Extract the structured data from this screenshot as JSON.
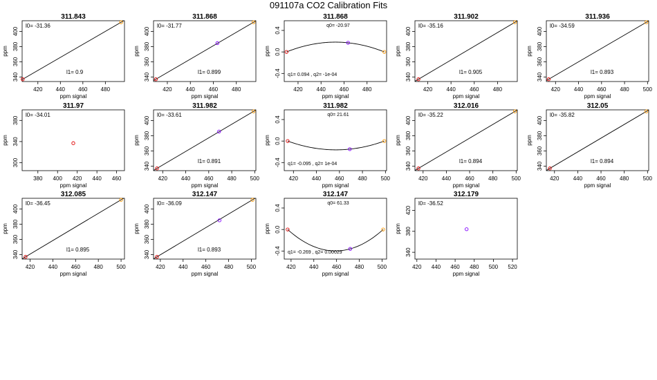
{
  "title": "091107a   CO2 Calibration Fits",
  "colors": {
    "low": "#e00000",
    "mid": "#8000ff",
    "high": "#ff9900",
    "line": "#000000"
  },
  "chart_data": [
    {
      "type": "line",
      "title": "311.843",
      "xlabel": "ppm signal",
      "ylabel": "ppm",
      "xlim": [
        406,
        497
      ],
      "xticks": [
        420,
        440,
        460,
        480
      ],
      "ylim": [
        334,
        414
      ],
      "yticks": [
        340,
        360,
        380,
        400
      ],
      "fit": {
        "kind": "linear",
        "x": [
          406.5,
          494
        ],
        "y": [
          337,
          412
        ]
      },
      "points": [
        {
          "x": 406.5,
          "y": 337,
          "c": "low"
        },
        {
          "x": 494,
          "y": 412,
          "c": "high"
        }
      ],
      "labels": [
        {
          "id": "l0",
          "text": "l0=  -31.36",
          "pos": "top-left"
        },
        {
          "id": "l1",
          "text": "l1=  0.9",
          "pos": "bottom-mid"
        }
      ]
    },
    {
      "type": "line",
      "title": "311.868",
      "xlabel": "ppm signal",
      "ylabel": "ppm",
      "xlim": [
        408,
        497
      ],
      "xticks": [
        420,
        440,
        460,
        480
      ],
      "ylim": [
        334,
        414
      ],
      "yticks": [
        340,
        360,
        380,
        400
      ],
      "fit": {
        "kind": "linear",
        "x": [
          410,
          495
        ],
        "y": [
          337,
          412
        ]
      },
      "points": [
        {
          "x": 410,
          "y": 337,
          "c": "low"
        },
        {
          "x": 463.5,
          "y": 384.5,
          "c": "mid"
        },
        {
          "x": 495,
          "y": 412,
          "c": "high"
        }
      ],
      "labels": [
        {
          "id": "l0",
          "text": "l0=  -31.77",
          "pos": "top-left"
        },
        {
          "id": "l1",
          "text": "l1=  0.899",
          "pos": "bottom-mid"
        }
      ]
    },
    {
      "type": "line",
      "title": "311.868",
      "xlabel": "ppm signal",
      "ylabel": "ppm",
      "xlim": [
        408,
        497
      ],
      "xticks": [
        420,
        440,
        460,
        480
      ],
      "ylim": [
        -0.55,
        0.58
      ],
      "yticks": [
        -0.4,
        0.0,
        0.4
      ],
      "ytick_labels": [
        "-0.4",
        "0.0",
        "0.4"
      ],
      "fit": {
        "kind": "quadratic",
        "x": [
          410,
          463.5,
          495
        ],
        "y": [
          0.0,
          0.17,
          0.0
        ]
      },
      "points": [
        {
          "x": 410,
          "y": 0.0,
          "c": "low"
        },
        {
          "x": 463.5,
          "y": 0.17,
          "c": "mid"
        },
        {
          "x": 495,
          "y": 0.0,
          "c": "high"
        }
      ],
      "labels": [
        {
          "id": "q0",
          "text": "q0=  -20.97",
          "pos": "top-mid"
        },
        {
          "id": "q12",
          "text": "q1=  0.094  ,  q2=  -1e-04",
          "pos": "bottom-left"
        }
      ]
    },
    {
      "type": "line",
      "title": "311.902",
      "xlabel": "ppm signal",
      "ylabel": "ppm",
      "xlim": [
        409,
        497
      ],
      "xticks": [
        420,
        440,
        460,
        480
      ],
      "ylim": [
        334,
        414
      ],
      "yticks": [
        340,
        360,
        380,
        400
      ],
      "fit": {
        "kind": "linear",
        "x": [
          412,
          495
        ],
        "y": [
          337,
          412
        ]
      },
      "points": [
        {
          "x": 412,
          "y": 337,
          "c": "low"
        },
        {
          "x": 495,
          "y": 412,
          "c": "high"
        }
      ],
      "labels": [
        {
          "id": "l0",
          "text": "l0=  -35.16",
          "pos": "top-left"
        },
        {
          "id": "l1",
          "text": "l1=  0.905",
          "pos": "bottom-mid"
        }
      ]
    },
    {
      "type": "line",
      "title": "311.936",
      "xlabel": "ppm signal",
      "ylabel": "ppm",
      "xlim": [
        412,
        501
      ],
      "xticks": [
        420,
        440,
        460,
        480,
        500
      ],
      "ylim": [
        334,
        414
      ],
      "yticks": [
        340,
        360,
        380,
        400
      ],
      "fit": {
        "kind": "linear",
        "x": [
          414,
          499
        ],
        "y": [
          337,
          412
        ]
      },
      "points": [
        {
          "x": 414,
          "y": 337,
          "c": "low"
        },
        {
          "x": 499,
          "y": 412,
          "c": "high"
        }
      ],
      "labels": [
        {
          "id": "l0",
          "text": "l0=  -34.59",
          "pos": "top-left"
        },
        {
          "id": "l1",
          "text": "l1=  0.893",
          "pos": "bottom-mid"
        }
      ]
    },
    {
      "type": "scatter",
      "title": "311.97",
      "xlabel": "ppm signal",
      "ylabel": "ppm",
      "xlim": [
        364,
        468
      ],
      "xticks": [
        380,
        400,
        420,
        440,
        460
      ],
      "ylim": [
        285,
        400
      ],
      "yticks": [
        300,
        340,
        380
      ],
      "fit": null,
      "points": [
        {
          "x": 416,
          "y": 337,
          "c": "low"
        }
      ],
      "labels": [
        {
          "id": "l0",
          "text": "l0=  -34.01",
          "pos": "top-left"
        }
      ]
    },
    {
      "type": "line",
      "title": "311.982",
      "xlabel": "ppm signal",
      "ylabel": "ppm",
      "xlim": [
        412,
        501
      ],
      "xticks": [
        420,
        440,
        460,
        480,
        500
      ],
      "ylim": [
        334,
        414
      ],
      "yticks": [
        340,
        360,
        380,
        400
      ],
      "fit": {
        "kind": "linear",
        "x": [
          415,
          499
        ],
        "y": [
          337,
          412
        ]
      },
      "points": [
        {
          "x": 415,
          "y": 337,
          "c": "low"
        },
        {
          "x": 469,
          "y": 385.5,
          "c": "mid"
        },
        {
          "x": 499,
          "y": 412,
          "c": "high"
        }
      ],
      "labels": [
        {
          "id": "l0",
          "text": "l0=  -33.61",
          "pos": "top-left"
        },
        {
          "id": "l1",
          "text": "l1=  0.891",
          "pos": "bottom-mid"
        }
      ]
    },
    {
      "type": "line",
      "title": "311.982",
      "xlabel": "ppm signal",
      "ylabel": "ppm",
      "xlim": [
        412,
        501
      ],
      "xticks": [
        420,
        440,
        460,
        480,
        500
      ],
      "ylim": [
        -0.55,
        0.58
      ],
      "yticks": [
        -0.4,
        0.0,
        0.4
      ],
      "ytick_labels": [
        "-0.4",
        "0.0",
        "0.4"
      ],
      "fit": {
        "kind": "quadratic",
        "x": [
          415,
          469,
          499
        ],
        "y": [
          0.0,
          -0.15,
          0.0
        ]
      },
      "points": [
        {
          "x": 415,
          "y": 0.0,
          "c": "low"
        },
        {
          "x": 469,
          "y": -0.15,
          "c": "mid"
        },
        {
          "x": 499,
          "y": 0.0,
          "c": "high"
        }
      ],
      "labels": [
        {
          "id": "q0",
          "text": "q0=  21.61",
          "pos": "top-mid"
        },
        {
          "id": "q12",
          "text": "q1=  -0.095  ,  q2=  1e-04",
          "pos": "bottom-left"
        }
      ]
    },
    {
      "type": "line",
      "title": "312.016",
      "xlabel": "ppm signal",
      "ylabel": "ppm",
      "xlim": [
        413,
        501
      ],
      "xticks": [
        420,
        440,
        460,
        480,
        500
      ],
      "ylim": [
        334,
        414
      ],
      "yticks": [
        340,
        360,
        380,
        400
      ],
      "fit": {
        "kind": "linear",
        "x": [
          416,
          499
        ],
        "y": [
          337,
          412
        ]
      },
      "points": [
        {
          "x": 416,
          "y": 337,
          "c": "low"
        },
        {
          "x": 499,
          "y": 412,
          "c": "high"
        }
      ],
      "labels": [
        {
          "id": "l0",
          "text": "l0=  -35.22",
          "pos": "top-left"
        },
        {
          "id": "l1",
          "text": "l1=  0.894",
          "pos": "bottom-mid"
        }
      ]
    },
    {
      "type": "line",
      "title": "312.05",
      "xlabel": "ppm signal",
      "ylabel": "ppm",
      "xlim": [
        413,
        501
      ],
      "xticks": [
        420,
        440,
        460,
        480,
        500
      ],
      "ylim": [
        334,
        414
      ],
      "yticks": [
        340,
        360,
        380,
        400
      ],
      "fit": {
        "kind": "linear",
        "x": [
          416,
          499
        ],
        "y": [
          337,
          412
        ]
      },
      "points": [
        {
          "x": 416,
          "y": 337,
          "c": "low"
        },
        {
          "x": 499,
          "y": 412,
          "c": "high"
        }
      ],
      "labels": [
        {
          "id": "l0",
          "text": "l0=  -35.82",
          "pos": "top-left"
        },
        {
          "id": "l1",
          "text": "l1=  0.894",
          "pos": "bottom-mid"
        }
      ]
    },
    {
      "type": "line",
      "title": "312.085",
      "xlabel": "ppm signal",
      "ylabel": "ppm",
      "xlim": [
        413,
        503
      ],
      "xticks": [
        420,
        440,
        460,
        480,
        500
      ],
      "ylim": [
        334,
        414
      ],
      "yticks": [
        340,
        360,
        380,
        400
      ],
      "fit": {
        "kind": "linear",
        "x": [
          416,
          500
        ],
        "y": [
          337,
          412
        ]
      },
      "points": [
        {
          "x": 416,
          "y": 337,
          "c": "low"
        },
        {
          "x": 500,
          "y": 412,
          "c": "high"
        }
      ],
      "labels": [
        {
          "id": "l0",
          "text": "l0=  -36.45",
          "pos": "top-left"
        },
        {
          "id": "l1",
          "text": "l1=  0.895",
          "pos": "bottom-mid"
        }
      ]
    },
    {
      "type": "line",
      "title": "312.147",
      "xlabel": "ppm signal",
      "ylabel": "ppm",
      "xlim": [
        414,
        504
      ],
      "xticks": [
        420,
        440,
        460,
        480,
        500
      ],
      "ylim": [
        334,
        414
      ],
      "yticks": [
        340,
        360,
        380,
        400
      ],
      "fit": {
        "kind": "linear",
        "x": [
          417,
          501
        ],
        "y": [
          337,
          412
        ]
      },
      "points": [
        {
          "x": 417,
          "y": 337,
          "c": "low"
        },
        {
          "x": 472,
          "y": 385,
          "c": "mid"
        },
        {
          "x": 501,
          "y": 412,
          "c": "high"
        }
      ],
      "labels": [
        {
          "id": "l0",
          "text": "l0=  -36.09",
          "pos": "top-left"
        },
        {
          "id": "l1",
          "text": "l1=  0.893",
          "pos": "bottom-mid"
        }
      ]
    },
    {
      "type": "line",
      "title": "312.147",
      "xlabel": "ppm signal",
      "ylabel": "ppm",
      "xlim": [
        414,
        504
      ],
      "xticks": [
        420,
        440,
        460,
        480,
        500
      ],
      "ylim": [
        -0.55,
        0.58
      ],
      "yticks": [
        -0.4,
        0.0,
        0.4
      ],
      "ytick_labels": [
        "-0.4",
        "0.0",
        "0.4"
      ],
      "fit": {
        "kind": "quadratic",
        "x": [
          417,
          472,
          501
        ],
        "y": [
          0.0,
          -0.36,
          0.0
        ]
      },
      "points": [
        {
          "x": 417,
          "y": 0.0,
          "c": "low"
        },
        {
          "x": 472,
          "y": -0.36,
          "c": "mid"
        },
        {
          "x": 501,
          "y": 0.0,
          "c": "high"
        }
      ],
      "labels": [
        {
          "id": "q0",
          "text": "q0=  61.33",
          "pos": "top-mid"
        },
        {
          "id": "q12",
          "text": "q1=  -0.269  ,  q2=  0.00029",
          "pos": "bottom-left"
        }
      ]
    },
    {
      "type": "scatter",
      "title": "312.179",
      "xlabel": "ppm signal",
      "ylabel": "ppm",
      "xlim": [
        418,
        525
      ],
      "xticks": [
        420,
        440,
        460,
        480,
        500,
        520
      ],
      "ylim": [
        327,
        443
      ],
      "yticks": [
        340,
        380,
        420
      ],
      "fit": null,
      "points": [
        {
          "x": 472,
          "y": 384,
          "c": "mid"
        }
      ],
      "labels": [
        {
          "id": "l0",
          "text": "l0=  -36.52",
          "pos": "top-left"
        }
      ]
    }
  ]
}
